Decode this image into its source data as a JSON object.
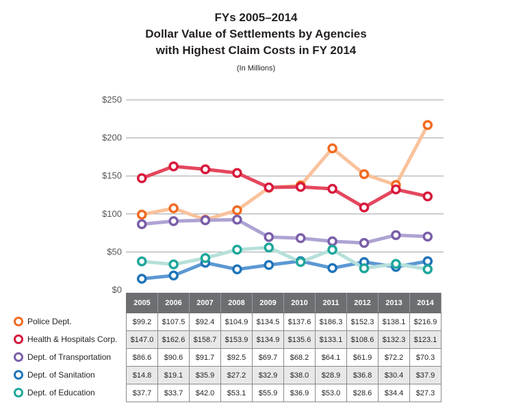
{
  "chart_data": {
    "type": "line",
    "title_lines": [
      "FYs 2005–2014",
      "Dollar Value of Settlements by Agencies",
      "with Highest Claim Costs in FY 2014"
    ],
    "subtitle": "(In Millions)",
    "x": [
      "2005",
      "2006",
      "2007",
      "2008",
      "2009",
      "2010",
      "2011",
      "2012",
      "2013",
      "2014"
    ],
    "ylim": [
      0,
      250
    ],
    "yticks": [
      "$0",
      "$50",
      "$100",
      "$150",
      "$200",
      "$250"
    ],
    "ytick_values": [
      0,
      50,
      100,
      150,
      200,
      250
    ],
    "grid": true,
    "legend_position": "left of table",
    "series": [
      {
        "name": "Police Dept.",
        "marker_color": "#f26b21",
        "line_color": "#f9c29c",
        "values": [
          99.2,
          107.5,
          92.4,
          104.9,
          134.5,
          137.6,
          186.3,
          152.3,
          138.1,
          216.9
        ],
        "labels": [
          "$99.2",
          "$107.5",
          "$92.4",
          "$104.9",
          "$134.5",
          "$137.6",
          "$186.3",
          "$152.3",
          "$138.1",
          "$216.9"
        ]
      },
      {
        "name": "Health & Hospitals Corp.",
        "marker_color": "#d7193c",
        "line_color": "#e4475e",
        "values": [
          147.0,
          162.6,
          158.7,
          153.9,
          134.9,
          135.6,
          133.1,
          108.6,
          132.3,
          123.1
        ],
        "labels": [
          "$147.0",
          "$162.6",
          "$158.7",
          "$153.9",
          "$134.9",
          "$135.6",
          "$133.1",
          "$108.6",
          "$132.3",
          "$123.1"
        ]
      },
      {
        "name": "Dept. of Transportation",
        "marker_color": "#7a5ea8",
        "line_color": "#aea3d3",
        "values": [
          86.6,
          90.6,
          91.7,
          92.5,
          69.7,
          68.2,
          64.1,
          61.9,
          72.2,
          70.3
        ],
        "labels": [
          "$86.6",
          "$90.6",
          "$91.7",
          "$92.5",
          "$69.7",
          "$68.2",
          "$64.1",
          "$61.9",
          "$72.2",
          "$70.3"
        ]
      },
      {
        "name": "Dept. of Sanitation",
        "marker_color": "#1f74b8",
        "line_color": "#5c98d3",
        "values": [
          14.8,
          19.1,
          35.9,
          27.2,
          32.9,
          38.0,
          28.9,
          36.8,
          30.4,
          37.9
        ],
        "labels": [
          "$14.8",
          "$19.1",
          "$35.9",
          "$27.2",
          "$32.9",
          "$38.0",
          "$28.9",
          "$36.8",
          "$30.4",
          "$37.9"
        ]
      },
      {
        "name": "Dept. of Education",
        "marker_color": "#1ea79b",
        "line_color": "#b6e0da",
        "values": [
          37.7,
          33.7,
          42.0,
          53.1,
          55.9,
          36.9,
          53.0,
          28.6,
          34.4,
          27.3
        ],
        "labels": [
          "$37.7",
          "$33.7",
          "$42.0",
          "$53.1",
          "$55.9",
          "$36.9",
          "$53.0",
          "$28.6",
          "$34.4",
          "$27.3"
        ]
      }
    ]
  }
}
